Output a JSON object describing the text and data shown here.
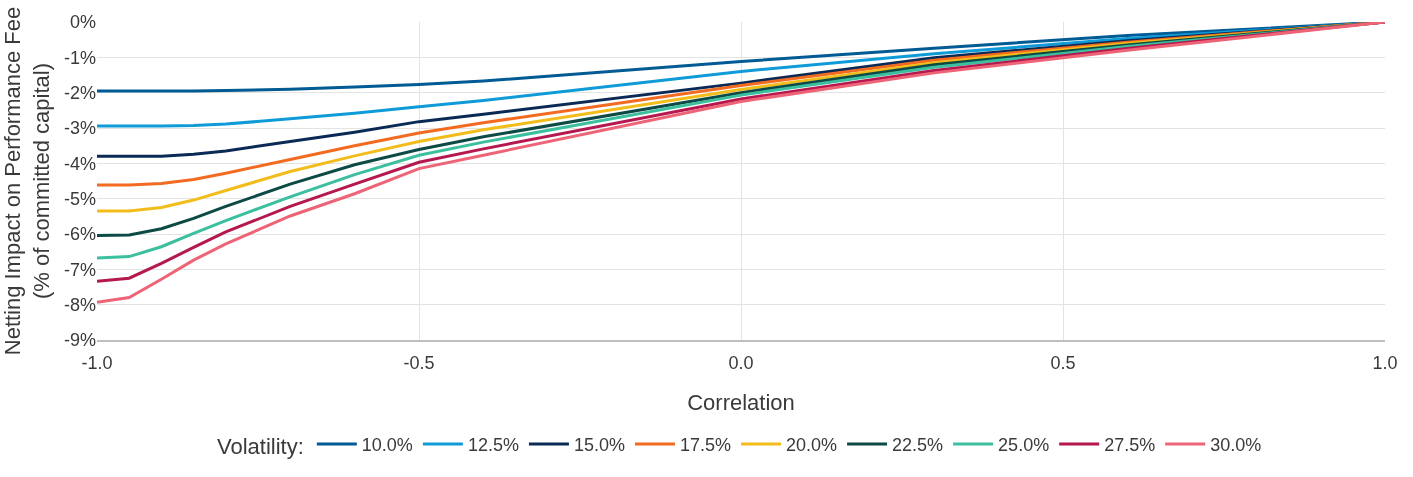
{
  "chart_data": {
    "type": "line",
    "xlabel": "Correlation",
    "ylabel": "Netting Impact on Performance Fee\n(% of committed capital)",
    "legend_title": "Volatility:",
    "x": [
      -1,
      -0.95,
      -0.9,
      -0.85,
      -0.8,
      -0.7,
      -0.6,
      -0.5,
      -0.4,
      0,
      0.3,
      0.6,
      1
    ],
    "series": [
      {
        "name": "10.0%",
        "color": "#005a93",
        "values": [
          -1.95,
          -1.95,
          -1.95,
          -1.95,
          -1.94,
          -1.9,
          -1.84,
          -1.77,
          -1.67,
          -1.12,
          -0.74,
          -0.38,
          0
        ]
      },
      {
        "name": "12.5%",
        "color": "#0f9ad8",
        "values": [
          -2.94,
          -2.94,
          -2.94,
          -2.93,
          -2.89,
          -2.74,
          -2.58,
          -2.4,
          -2.22,
          -1.4,
          -0.9,
          -0.47,
          0
        ]
      },
      {
        "name": "15.0%",
        "color": "#0a2a55",
        "values": [
          -3.8,
          -3.8,
          -3.8,
          -3.74,
          -3.65,
          -3.38,
          -3.12,
          -2.82,
          -2.61,
          -1.73,
          -1.01,
          -0.53,
          0
        ]
      },
      {
        "name": "17.5%",
        "color": "#f26b21",
        "values": [
          -4.61,
          -4.61,
          -4.57,
          -4.46,
          -4.28,
          -3.89,
          -3.5,
          -3.14,
          -2.85,
          -1.8,
          -1.08,
          -0.57,
          0
        ]
      },
      {
        "name": "20.0%",
        "color": "#f2bd1a",
        "values": [
          -5.35,
          -5.35,
          -5.25,
          -5.04,
          -4.77,
          -4.23,
          -3.79,
          -3.38,
          -3.05,
          -1.91,
          -1.15,
          -0.61,
          0
        ]
      },
      {
        "name": "22.5%",
        "color": "#0d4a45",
        "values": [
          -6.04,
          -6.03,
          -5.85,
          -5.56,
          -5.22,
          -4.59,
          -4.04,
          -3.61,
          -3.25,
          -2.0,
          -1.21,
          -0.65,
          0
        ]
      },
      {
        "name": "25.0%",
        "color": "#3bbf9e",
        "values": [
          -6.68,
          -6.64,
          -6.36,
          -5.98,
          -5.62,
          -4.95,
          -4.32,
          -3.77,
          -3.4,
          -2.07,
          -1.28,
          -0.69,
          0
        ]
      },
      {
        "name": "27.5%",
        "color": "#b5174f",
        "values": [
          -7.34,
          -7.25,
          -6.83,
          -6.38,
          -5.94,
          -5.22,
          -4.59,
          -3.97,
          -3.59,
          -2.18,
          -1.37,
          -0.75,
          0
        ]
      },
      {
        "name": "30.0%",
        "color": "#ee6477",
        "values": [
          -7.93,
          -7.8,
          -7.28,
          -6.74,
          -6.28,
          -5.49,
          -4.86,
          -4.15,
          -3.77,
          -2.25,
          -1.44,
          -0.8,
          0
        ]
      }
    ],
    "xlim": [
      -1,
      1
    ],
    "xticks": [
      {
        "value": -1,
        "label": "-1.0"
      },
      {
        "value": -0.5,
        "label": "-0.5"
      },
      {
        "value": 0,
        "label": "0.0"
      },
      {
        "value": 0.5,
        "label": "0.5"
      },
      {
        "value": 1,
        "label": "1.0"
      }
    ],
    "ylim": [
      -9,
      0
    ],
    "yticks": [
      {
        "value": 0,
        "label": "0%"
      },
      {
        "value": -1,
        "label": "-1%"
      },
      {
        "value": -2,
        "label": "-2%"
      },
      {
        "value": -3,
        "label": "-3%"
      },
      {
        "value": -4,
        "label": "-4%"
      },
      {
        "value": -5,
        "label": "-5%"
      },
      {
        "value": -6,
        "label": "-6%"
      },
      {
        "value": -7,
        "label": "-7%"
      },
      {
        "value": -8,
        "label": "-8%"
      },
      {
        "value": -9,
        "label": "-9%"
      }
    ],
    "grid": true,
    "legend": "bottom",
    "marker": "none",
    "line_style": "solid"
  }
}
